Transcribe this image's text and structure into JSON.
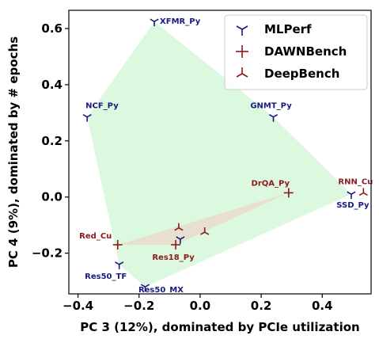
{
  "chart_data": {
    "type": "scatter",
    "xlabel": "PC 3 (12%), dominated by PCIe utilization",
    "ylabel": "PC 4 (9%), dominated by # epochs",
    "xlim": [
      -0.43,
      0.56
    ],
    "ylim": [
      -0.345,
      0.665
    ],
    "x_ticks": [
      -0.4,
      -0.2,
      0.0,
      0.2,
      0.4
    ],
    "x_tick_labels": [
      "−0.4",
      "−0.2",
      "0.0",
      "0.2",
      "0.4"
    ],
    "y_ticks": [
      -0.2,
      0.0,
      0.2,
      0.4,
      0.6
    ],
    "y_tick_labels": [
      "−0.2",
      "0.0",
      "0.2",
      "0.4",
      "0.6"
    ],
    "grid": false,
    "legend_position": "top-right",
    "colors": {
      "mlperf": "#1a1a80",
      "dawnbench": "#8b1a1a",
      "deepbench": "#8b1a1a",
      "mlperf_hull": "#d8f7dc",
      "dawnbench_hull": "#eadccd"
    },
    "series": [
      {
        "name": "MLPerf",
        "marker": "tri-down",
        "color": "#1a1a80",
        "points": [
          {
            "x": -0.15,
            "y": 0.625,
            "label": "XFMR_Py"
          },
          {
            "x": -0.37,
            "y": 0.285,
            "label": "NCF_Py"
          },
          {
            "x": 0.24,
            "y": 0.285,
            "label": "GNMT_Py"
          },
          {
            "x": 0.495,
            "y": 0.01,
            "label": "SSD_Py"
          },
          {
            "x": -0.065,
            "y": -0.15,
            "label": ""
          },
          {
            "x": -0.265,
            "y": -0.24,
            "label": "Res50_TF"
          },
          {
            "x": -0.18,
            "y": -0.32,
            "label": "Res50_MX"
          }
        ]
      },
      {
        "name": "DAWNBench",
        "marker": "plus",
        "color": "#8b1a1a",
        "points": [
          {
            "x": 0.29,
            "y": 0.015,
            "label": "DrQA_Py"
          },
          {
            "x": -0.27,
            "y": -0.17,
            "label": "Red_Cu"
          },
          {
            "x": -0.08,
            "y": -0.17,
            "label": "Res18_Py"
          }
        ]
      },
      {
        "name": "DeepBench",
        "marker": "tri-up",
        "color": "#8b1a1a",
        "points": [
          {
            "x": 0.535,
            "y": 0.015,
            "label": "RNN_Cu"
          },
          {
            "x": -0.07,
            "y": -0.11,
            "label": ""
          },
          {
            "x": 0.015,
            "y": -0.125,
            "label": ""
          }
        ]
      }
    ]
  }
}
